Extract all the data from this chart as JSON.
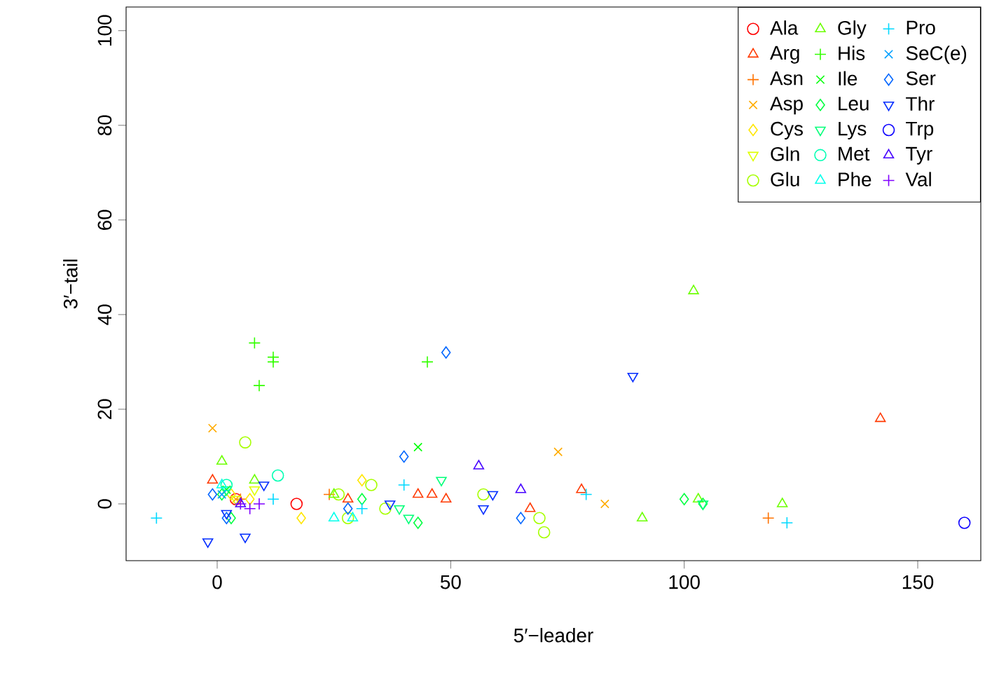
{
  "chart_data": {
    "type": "scatter",
    "xlabel": "5′−leader",
    "ylabel": "3′−tail",
    "xlim": [
      -19.5,
      163.5
    ],
    "ylim": [
      -12,
      105
    ],
    "xticks": [
      0,
      50,
      100,
      150
    ],
    "yticks": [
      0,
      20,
      40,
      60,
      80,
      100
    ],
    "grid": false,
    "legend": "top right",
    "series": [
      {
        "name": "Ala",
        "color": "#ff0000",
        "marker": "circle",
        "x": [
          17,
          4
        ],
        "values": [
          0,
          1
        ]
      },
      {
        "name": "Arg",
        "color": "#ff3900",
        "marker": "triangle",
        "x": [
          -1,
          28,
          43,
          46,
          49,
          67,
          78,
          142
        ],
        "values": [
          5,
          1,
          2,
          2,
          1,
          -1,
          3,
          18
        ]
      },
      {
        "name": "Asn",
        "color": "#ff7300",
        "marker": "plus",
        "x": [
          24,
          118,
          5
        ],
        "values": [
          2,
          -3,
          1
        ]
      },
      {
        "name": "Asp",
        "color": "#ffac00",
        "marker": "cross",
        "x": [
          -1,
          73,
          83,
          4
        ],
        "values": [
          16,
          11,
          0,
          1
        ]
      },
      {
        "name": "Cys",
        "color": "#ffe600",
        "marker": "diamond",
        "x": [
          31,
          18,
          3,
          7
        ],
        "values": [
          5,
          -3,
          2,
          1
        ]
      },
      {
        "name": "Gln",
        "color": "#dfff00",
        "marker": "triangle down",
        "x": [
          8,
          4
        ],
        "values": [
          3,
          1
        ]
      },
      {
        "name": "Glu",
        "color": "#a6ff00",
        "marker": "circle",
        "x": [
          6,
          26,
          28,
          33,
          36,
          57,
          69,
          70
        ],
        "values": [
          13,
          2,
          -3,
          4,
          -1,
          2,
          -3,
          -6
        ]
      },
      {
        "name": "Gly",
        "color": "#6cff00",
        "marker": "triangle",
        "x": [
          1,
          25,
          91,
          102,
          103,
          121,
          8
        ],
        "values": [
          9,
          2,
          -3,
          45,
          1,
          0,
          5
        ]
      },
      {
        "name": "His",
        "color": "#33ff00",
        "marker": "plus",
        "x": [
          8,
          12,
          12,
          9,
          45
        ],
        "values": [
          34,
          31,
          30,
          25,
          30
        ]
      },
      {
        "name": "Ile",
        "color": "#00ff06",
        "marker": "cross",
        "x": [
          43,
          2
        ],
        "values": [
          12,
          3
        ]
      },
      {
        "name": "Leu",
        "color": "#00ff40",
        "marker": "diamond",
        "x": [
          31,
          43,
          100,
          104,
          1,
          3
        ],
        "values": [
          1,
          -4,
          1,
          0,
          2,
          -3
        ]
      },
      {
        "name": "Lys",
        "color": "#00ff79",
        "marker": "triangle down",
        "x": [
          48,
          39,
          41,
          104,
          2
        ],
        "values": [
          5,
          -1,
          -3,
          0,
          3
        ]
      },
      {
        "name": "Met",
        "color": "#00ffb3",
        "marker": "circle",
        "x": [
          13,
          2
        ],
        "values": [
          6,
          4
        ]
      },
      {
        "name": "Phe",
        "color": "#00ffec",
        "marker": "triangle",
        "x": [
          25,
          29,
          1
        ],
        "values": [
          -3,
          -3,
          4
        ]
      },
      {
        "name": "Pro",
        "color": "#00d9ff",
        "marker": "plus",
        "x": [
          -13,
          31,
          40,
          79,
          122,
          12
        ],
        "values": [
          -3,
          -1,
          4,
          2,
          -4,
          1
        ]
      },
      {
        "name": "SeC(e)",
        "color": "#00a0ff",
        "marker": "cross",
        "x": [
          1
        ],
        "values": [
          2
        ]
      },
      {
        "name": "Ser",
        "color": "#0066ff",
        "marker": "diamond",
        "x": [
          -1,
          2,
          28,
          40,
          49,
          65
        ],
        "values": [
          2,
          -3,
          -1,
          10,
          32,
          -3
        ]
      },
      {
        "name": "Thr",
        "color": "#002cff",
        "marker": "triangle down",
        "x": [
          -2,
          6,
          10,
          37,
          57,
          59,
          89,
          2
        ],
        "values": [
          -8,
          -7,
          4,
          0,
          -1,
          2,
          27,
          -2
        ]
      },
      {
        "name": "Trp",
        "color": "#0d00ff",
        "marker": "circle",
        "x": [
          160
        ],
        "values": [
          -4
        ]
      },
      {
        "name": "Tyr",
        "color": "#4600ff",
        "marker": "triangle",
        "x": [
          56,
          65,
          5
        ],
        "values": [
          8,
          3,
          0
        ]
      },
      {
        "name": "Val",
        "color": "#8000ff",
        "marker": "plus",
        "x": [
          5,
          7,
          9
        ],
        "values": [
          0,
          -1,
          0
        ]
      }
    ]
  }
}
